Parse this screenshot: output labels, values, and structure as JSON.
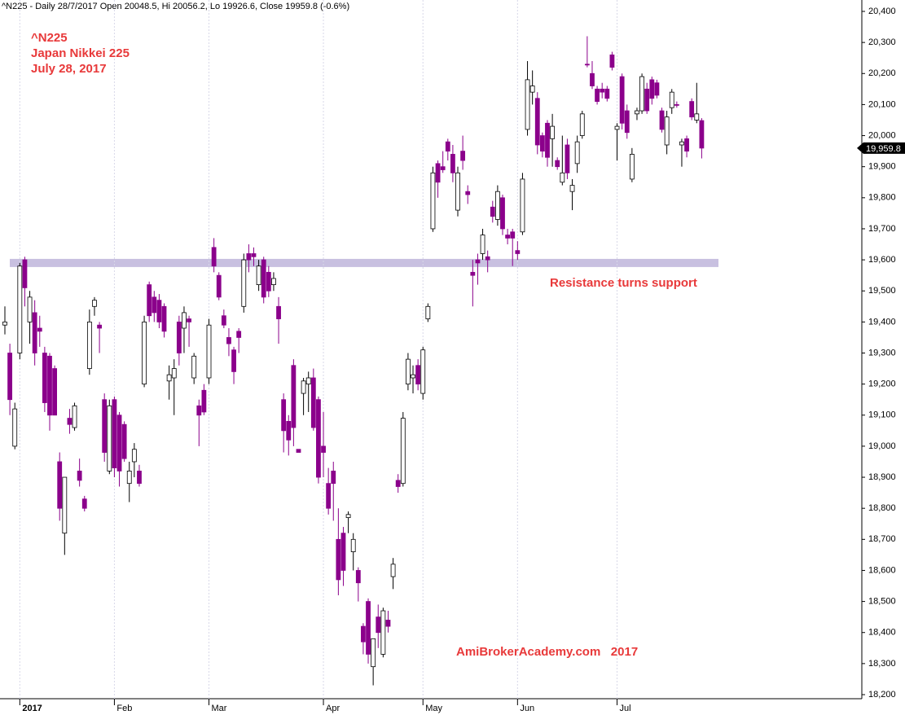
{
  "chart_data": {
    "type": "candlestick",
    "title": "^N225 - Daily 28/7/2017 Open 20048.5, Hi 20056.2, Lo 19926.6, Close 19959.8 (-0.6%)",
    "annotations": [
      "^N225",
      "Japan Nikkei 225",
      "July 28, 2017",
      "Resistance turns support",
      "AmiBrokerAcademy.com   2017"
    ],
    "up_color": "#ffffff",
    "down_color": "#8b008b",
    "resistance": {
      "value": 19590,
      "color": "#c8c0e0"
    },
    "last_price": {
      "value": 19959.8,
      "label": "19,959.8"
    },
    "ylim": [
      18200,
      20400
    ],
    "yticks": [
      {
        "value": 18200,
        "label": "18,200"
      },
      {
        "value": 18300,
        "label": "18,300"
      },
      {
        "value": 18400,
        "label": "18,400"
      },
      {
        "value": 18500,
        "label": "18,500"
      },
      {
        "value": 18600,
        "label": "18,600"
      },
      {
        "value": 18700,
        "label": "18,700"
      },
      {
        "value": 18800,
        "label": "18,800"
      },
      {
        "value": 18900,
        "label": "18,900"
      },
      {
        "value": 19000,
        "label": "19,000"
      },
      {
        "value": 19100,
        "label": "19,100"
      },
      {
        "value": 19200,
        "label": "19,200"
      },
      {
        "value": 19300,
        "label": "19,300"
      },
      {
        "value": 19400,
        "label": "19,400"
      },
      {
        "value": 19500,
        "label": "19,500"
      },
      {
        "value": 19600,
        "label": "19,600"
      },
      {
        "value": 19700,
        "label": "19,700"
      },
      {
        "value": 19800,
        "label": "19,800"
      },
      {
        "value": 19900,
        "label": "19,900"
      },
      {
        "value": 20000,
        "label": "20,000"
      },
      {
        "value": 20100,
        "label": "20,100"
      },
      {
        "value": 20200,
        "label": "20,200"
      },
      {
        "value": 20300,
        "label": "20,300"
      },
      {
        "value": 20400,
        "label": "20,400"
      }
    ],
    "grid": true,
    "categories": [
      null,
      null,
      null,
      "2017",
      null,
      null,
      null,
      null,
      null,
      null,
      null,
      null,
      null,
      null,
      null,
      null,
      null,
      null,
      null,
      null,
      null,
      null,
      "Feb",
      null,
      null,
      null,
      null,
      null,
      null,
      null,
      null,
      null,
      null,
      null,
      null,
      null,
      null,
      null,
      null,
      null,
      null,
      "Mar",
      null,
      null,
      null,
      null,
      null,
      null,
      null,
      null,
      null,
      null,
      null,
      null,
      null,
      null,
      null,
      null,
      null,
      null,
      null,
      null,
      null,
      null,
      "Apr",
      null,
      null,
      null,
      null,
      null,
      null,
      null,
      null,
      null,
      null,
      null,
      null,
      null,
      null,
      null,
      null,
      null,
      null,
      null,
      "May",
      null,
      null,
      null,
      null,
      null,
      null,
      null,
      null,
      null,
      null,
      null,
      null,
      null,
      null,
      null,
      null,
      null,
      null,
      "Jun",
      null,
      null,
      null,
      null,
      null,
      null,
      null,
      null,
      null,
      null,
      null,
      null,
      null,
      null,
      null,
      null,
      null,
      null,
      null,
      "Jul",
      null,
      null,
      null,
      null,
      null,
      null,
      null,
      null,
      null,
      null,
      null,
      null,
      null,
      null,
      null,
      null,
      null
    ],
    "open": [
      19390,
      19300,
      19000,
      19300,
      19600,
      19400,
      19430,
      19380,
      19300,
      19290,
      19250,
      18950,
      18720,
      19090,
      19060,
      18920,
      18830,
      19250,
      19450,
      19390,
      19150,
      18920,
      19150,
      19100,
      19070,
      18880,
      18950,
      18920,
      19200,
      19520,
      19480,
      19470,
      19450,
      19210,
      19220,
      19400,
      19380,
      19410,
      19220,
      19130,
      19180,
      19220,
      19640,
      19550,
      19420,
      19350,
      19310,
      19370,
      19450,
      19620,
      19620,
      19520,
      19600,
      19560,
      19520,
      19450,
      19150,
      19080,
      19260,
      18990,
      19170,
      19200,
      19220,
      19150,
      19000,
      18880,
      18920,
      18700,
      18720,
      18770,
      18660,
      18600,
      18420,
      18500,
      18290,
      18450,
      18330,
      18440,
      18580,
      18890,
      18880,
      19200,
      19220,
      19260,
      19170,
      19410,
      19700,
      19910,
      19900,
      19980,
      19940,
      19760,
      19950,
      19820,
      19560,
      19600,
      19620,
      19610,
      19770,
      19730,
      19800,
      19680,
      19690,
      19630,
      19690,
      20020,
      20140,
      20120,
      20000,
      20040,
      19990,
      19920,
      19850,
      19970,
      19820,
      19910,
      20000,
      20230,
      20200,
      20150,
      20150,
      20150,
      20260,
      20020,
      20190,
      20080,
      19860,
      20070,
      20080,
      20150,
      20180,
      20170,
      20080,
      19970,
      20090,
      20100,
      19970,
      19990,
      20110,
      20050,
      20048.5
    ],
    "high": [
      19450,
      19330,
      19140,
      19590,
      19610,
      19500,
      19470,
      19420,
      19320,
      19300,
      19260,
      18980,
      18900,
      19120,
      19140,
      18960,
      18840,
      19440,
      19480,
      19400,
      19170,
      19150,
      19160,
      19110,
      19080,
      18950,
      19010,
      18940,
      19420,
      19530,
      19500,
      19490,
      19460,
      19260,
      19280,
      19420,
      19450,
      19420,
      19300,
      19150,
      19200,
      19410,
      19670,
      19560,
      19440,
      19380,
      19320,
      19380,
      19620,
      19650,
      19640,
      19600,
      19610,
      19580,
      19560,
      19480,
      19170,
      19100,
      19280,
      18990,
      19220,
      19240,
      19250,
      19160,
      19110,
      18930,
      18950,
      18800,
      18740,
      18790,
      18720,
      18610,
      18430,
      18510,
      18380,
      18490,
      18480,
      18470,
      18640,
      18910,
      19110,
      19300,
      19260,
      19280,
      19320,
      19460,
      19900,
      19920,
      19950,
      19990,
      19970,
      19900,
      20000,
      19840,
      19600,
      19620,
      19700,
      19630,
      19790,
      19840,
      19810,
      19700,
      19700,
      19660,
      19880,
      20240,
      20210,
      20140,
      20010,
      20050,
      20070,
      19930,
      20000,
      19990,
      19860,
      20000,
      20080,
      20320,
      20240,
      20160,
      20170,
      20160,
      20270,
      20040,
      20200,
      20100,
      19960,
      20090,
      20200,
      20170,
      20190,
      20180,
      20090,
      20080,
      20150,
      20110,
      19990,
      20000,
      20120,
      20170,
      20056.2
    ],
    "low": [
      19360,
      19100,
      18990,
      19280,
      19450,
      19330,
      19260,
      19320,
      19110,
      19050,
      19100,
      18760,
      18650,
      19040,
      19050,
      18870,
      18790,
      19230,
      19420,
      19300,
      18950,
      18910,
      18900,
      18870,
      18950,
      18820,
      18900,
      18870,
      19190,
      19400,
      19400,
      19380,
      19350,
      19150,
      19100,
      19260,
      19300,
      19320,
      19200,
      19000,
      19100,
      19200,
      19560,
      19470,
      19380,
      19290,
      19200,
      19300,
      19430,
      19560,
      19580,
      19500,
      19460,
      19480,
      19500,
      19330,
      18980,
      18970,
      19000,
      18980,
      19100,
      19110,
      19050,
      18880,
      18900,
      18780,
      18760,
      18520,
      18550,
      18720,
      18600,
      18500,
      18330,
      18300,
      18230,
      18350,
      18320,
      18400,
      18540,
      18850,
      18870,
      19180,
      19170,
      19180,
      19150,
      19400,
      19690,
      19800,
      19880,
      19920,
      19850,
      19740,
      19890,
      19780,
      19450,
      19520,
      19600,
      19560,
      19720,
      19710,
      19680,
      19650,
      19580,
      19600,
      19680,
      20000,
      20100,
      19940,
      19930,
      19900,
      19900,
      19890,
      19840,
      19860,
      19760,
      19880,
      19990,
      20220,
      20150,
      20100,
      20120,
      20110,
      20210,
      19920,
      20020,
      19990,
      19850,
      20050,
      20070,
      20070,
      20100,
      20120,
      20010,
      19940,
      20070,
      20090,
      19900,
      19930,
      20050,
      20040,
      19926.6
    ],
    "close": [
      19400,
      19150,
      19120,
      19580,
      19510,
      19480,
      19300,
      19370,
      19140,
      19100,
      19100,
      18800,
      18900,
      19070,
      19130,
      18890,
      18800,
      19400,
      19470,
      19380,
      18980,
      19130,
      18930,
      18920,
      18960,
      18920,
      18990,
      18880,
      19400,
      19420,
      19430,
      19400,
      19370,
      19230,
      19250,
      19300,
      19430,
      19400,
      19290,
      19100,
      19110,
      19390,
      19580,
      19480,
      19390,
      19330,
      19240,
      19350,
      19600,
      19600,
      19610,
      19580,
      19480,
      19500,
      19540,
      19410,
      19050,
      19020,
      19060,
      18980,
      19210,
      19220,
      19060,
      18900,
      18980,
      18800,
      18880,
      18570,
      18600,
      18780,
      18700,
      18560,
      18370,
      18330,
      18380,
      18400,
      18470,
      18420,
      18620,
      18870,
      19090,
      19280,
      19230,
      19200,
      19310,
      19450,
      19880,
      19850,
      19890,
      19950,
      19880,
      19880,
      19920,
      19810,
      19550,
      19590,
      19680,
      19600,
      19740,
      19820,
      19700,
      19670,
      19670,
      19620,
      19860,
      20180,
      20160,
      19970,
      19950,
      19930,
      20030,
      19900,
      19880,
      19880,
      19840,
      19980,
      20070,
      20230,
      20160,
      20110,
      20140,
      20120,
      20220,
      20030,
      20040,
      20010,
      19940,
      20080,
      20190,
      20080,
      20120,
      20130,
      20020,
      20060,
      20140,
      20100,
      19980,
      19950,
      20060,
      20070,
      19959.8
    ]
  }
}
